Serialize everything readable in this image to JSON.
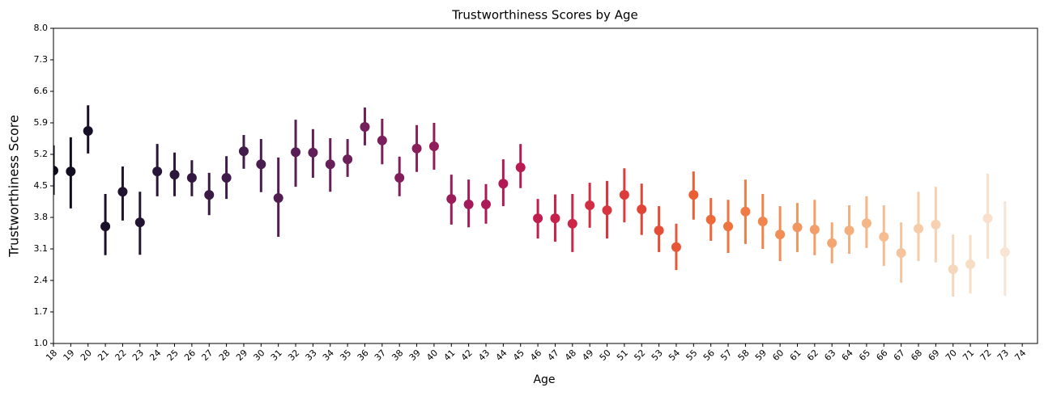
{
  "chart_data": {
    "type": "pointplot",
    "title": "Trustworthiness Scores by Age",
    "x_label": "Age",
    "y_label": "Trustworthiness Score",
    "categories": [
      "18",
      "19",
      "20",
      "21",
      "22",
      "23",
      "24",
      "25",
      "26",
      "27",
      "28",
      "29",
      "30",
      "31",
      "32",
      "33",
      "34",
      "35",
      "36",
      "37",
      "38",
      "39",
      "40",
      "41",
      "42",
      "43",
      "44",
      "45",
      "46",
      "47",
      "48",
      "49",
      "50",
      "51",
      "52",
      "53",
      "54",
      "55",
      "56",
      "57",
      "58",
      "59",
      "60",
      "61",
      "62",
      "63",
      "64",
      "65",
      "66",
      "67",
      "68",
      "69",
      "70",
      "71",
      "72",
      "73",
      "74"
    ],
    "values": [
      4.84,
      4.82,
      5.72,
      3.6,
      4.37,
      3.69,
      4.82,
      4.75,
      4.68,
      4.3,
      4.68,
      5.27,
      4.98,
      4.23,
      5.25,
      5.24,
      4.98,
      5.09,
      5.81,
      5.51,
      4.68,
      5.33,
      5.38,
      4.21,
      4.09,
      4.09,
      4.55,
      4.91,
      3.78,
      3.78,
      3.66,
      4.07,
      3.96,
      4.3,
      3.98,
      3.51,
      3.14,
      4.3,
      3.75,
      3.6,
      3.93,
      3.71,
      3.42,
      3.58,
      3.53,
      3.23,
      3.51,
      3.67,
      3.37,
      3.01,
      3.55,
      3.64,
      2.65,
      2.76,
      3.78,
      3.03,
      null
    ],
    "ci_lower": [
      4.3,
      4.0,
      5.22,
      2.96,
      3.73,
      2.97,
      4.27,
      4.27,
      4.27,
      3.85,
      4.21,
      4.88,
      4.36,
      3.37,
      4.48,
      4.68,
      4.37,
      4.7,
      5.4,
      4.98,
      4.27,
      4.81,
      4.86,
      3.64,
      3.58,
      3.66,
      4.05,
      4.45,
      3.33,
      3.26,
      3.03,
      3.57,
      3.33,
      3.69,
      3.41,
      3.03,
      2.63,
      3.75,
      3.28,
      3.01,
      3.21,
      3.1,
      2.83,
      3.03,
      2.96,
      2.78,
      2.99,
      3.12,
      2.72,
      2.35,
      2.83,
      2.8,
      2.04,
      2.11,
      2.88,
      2.06,
      null
    ],
    "ci_upper": [
      5.4,
      5.58,
      6.29,
      4.32,
      4.93,
      4.37,
      5.43,
      5.24,
      5.07,
      4.79,
      5.16,
      5.63,
      5.54,
      5.13,
      5.97,
      5.76,
      5.56,
      5.54,
      6.24,
      5.99,
      5.15,
      5.85,
      5.9,
      4.75,
      4.64,
      4.54,
      5.09,
      5.43,
      4.21,
      4.31,
      4.32,
      4.57,
      4.61,
      4.89,
      4.55,
      4.05,
      3.66,
      4.82,
      4.23,
      4.19,
      4.64,
      4.32,
      4.05,
      4.12,
      4.19,
      3.69,
      4.07,
      4.27,
      4.07,
      3.69,
      4.37,
      4.48,
      3.42,
      3.41,
      4.77,
      4.16,
      null
    ],
    "colors": [
      "#0f0a1e",
      "#130d22",
      "#170f27",
      "#1b112b",
      "#1f1330",
      "#231434",
      "#281638",
      "#2d173c",
      "#321840",
      "#381a44",
      "#3e1b48",
      "#441c4c",
      "#4a1d4f",
      "#511e52",
      "#581e55",
      "#5f1f57",
      "#661f59",
      "#6d1f5a",
      "#741f5b",
      "#7b1f5c",
      "#831e5c",
      "#8a1e5c",
      "#921d5b",
      "#9a1c5a",
      "#a21a59",
      "#a91a57",
      "#b11a55",
      "#b81b52",
      "#bf1e4f",
      "#c6224b",
      "#cc2747",
      "#d22e43",
      "#d7353f",
      "#dc3d3b",
      "#e04538",
      "#e44e36",
      "#e75735",
      "#ea6036",
      "#ec6a3a",
      "#ee733f",
      "#ef7c46",
      "#f0854e",
      "#f18e56",
      "#f2965f",
      "#f39e68",
      "#f4a672",
      "#f4ae7c",
      "#f5b586",
      "#f5bd91",
      "#f6c49c",
      "#f6cba7",
      "#f7d1b1",
      "#f7d7bb",
      "#f8dcc4",
      "#f8e0cc",
      "#f9e4d3",
      "#f9e7d9"
    ],
    "ylim": [
      1.0,
      8.0
    ],
    "yticks": [
      {
        "value": 1.0,
        "label": "1.0"
      },
      {
        "value": 1.7,
        "label": "1.7"
      },
      {
        "value": 2.4,
        "label": "2.4"
      },
      {
        "value": 3.1,
        "label": "3.1"
      },
      {
        "value": 3.8,
        "label": "3.8"
      },
      {
        "value": 4.5,
        "label": "4.5"
      },
      {
        "value": 5.2,
        "label": "5.2"
      },
      {
        "value": 5.9,
        "label": "5.9"
      },
      {
        "value": 6.6,
        "label": "6.6"
      },
      {
        "value": 7.3,
        "label": "7.3"
      },
      {
        "value": 8.0,
        "label": "8.0"
      }
    ],
    "grid": false
  }
}
